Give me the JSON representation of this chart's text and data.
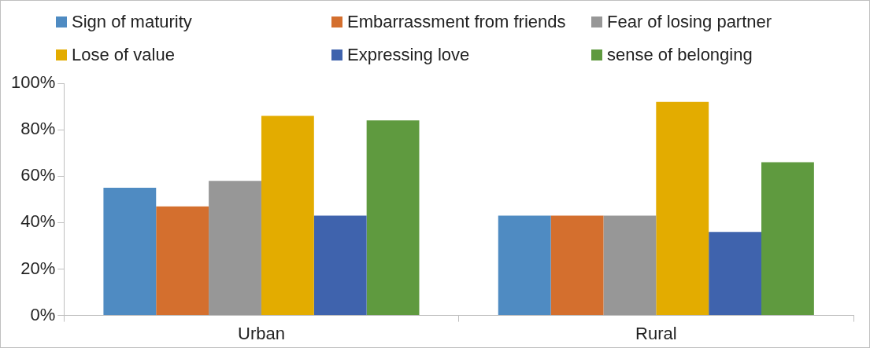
{
  "chart_data": {
    "type": "bar",
    "categories": [
      "Urban",
      "Rural"
    ],
    "series": [
      {
        "name": "Sign of maturity",
        "color": "#4f8bc2",
        "values": [
          55,
          43
        ]
      },
      {
        "name": "Embarrassment from friends",
        "color": "#d46f2e",
        "values": [
          47,
          43
        ]
      },
      {
        "name": "Fear of losing partner",
        "color": "#979797",
        "values": [
          58,
          43
        ]
      },
      {
        "name": "Lose of value",
        "color": "#e3ac00",
        "values": [
          86,
          92
        ]
      },
      {
        "name": "Expressing love",
        "color": "#3f63ad",
        "values": [
          43,
          36
        ]
      },
      {
        "name": "sense of belonging",
        "color": "#5f9a3f",
        "values": [
          84,
          66
        ]
      }
    ],
    "ylim": [
      0,
      100
    ],
    "yticks": [
      {
        "value": 0,
        "label": "0%"
      },
      {
        "value": 20,
        "label": "20%"
      },
      {
        "value": 40,
        "label": "40%"
      },
      {
        "value": 60,
        "label": "60%"
      },
      {
        "value": 80,
        "label": "80%"
      },
      {
        "value": 100,
        "label": "100%"
      }
    ],
    "grid": false,
    "legend": "top"
  }
}
